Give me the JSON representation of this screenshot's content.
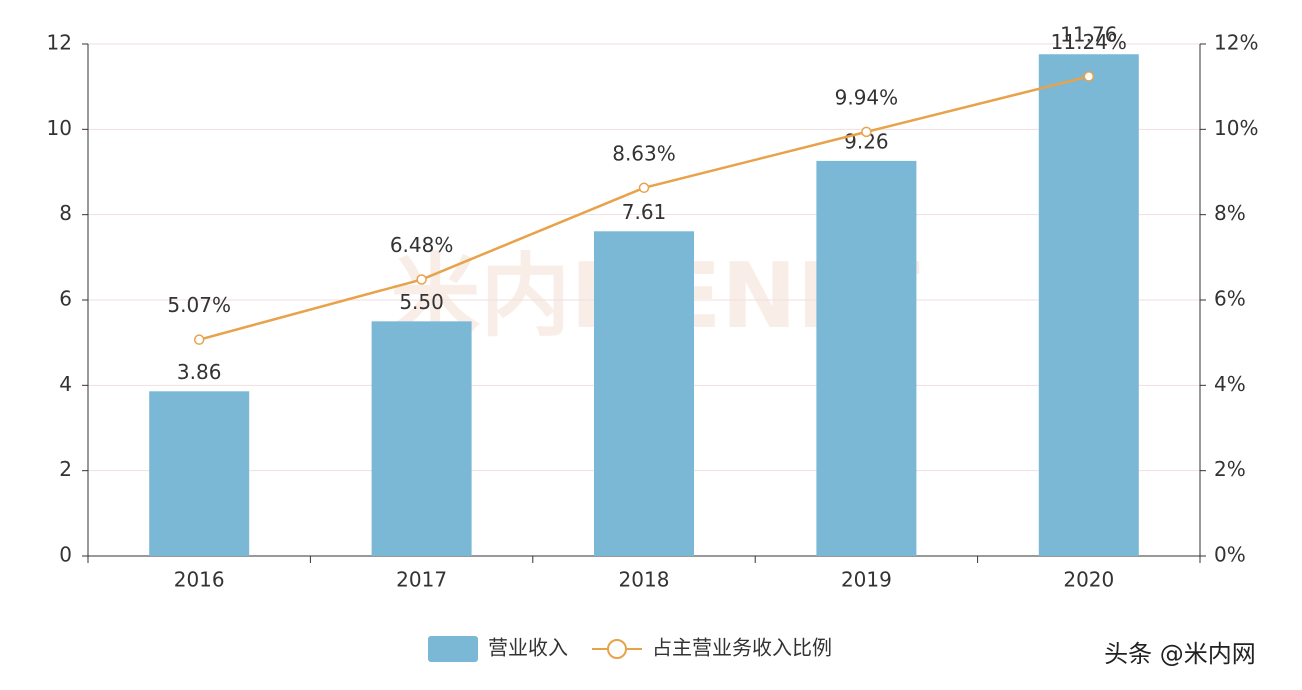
{
  "chart_data": {
    "type": "bar",
    "categories": [
      "2016",
      "2017",
      "2018",
      "2019",
      "2020"
    ],
    "series": [
      {
        "name": "营业收入",
        "type": "bar",
        "color": "#7ab8d6",
        "values": [
          3.86,
          5.5,
          7.61,
          9.26,
          11.76
        ],
        "value_labels": [
          "3.86",
          "5.50",
          "7.61",
          "9.26",
          "11.76"
        ]
      },
      {
        "name": "占主营业务收入比例",
        "type": "line",
        "axis": "y2",
        "color": "#e8a24a",
        "values": [
          5.07,
          6.48,
          8.63,
          9.94,
          11.24
        ],
        "value_labels": [
          "5.07%",
          "6.48%",
          "8.63%",
          "9.94%",
          "11.24%"
        ]
      }
    ],
    "ylim": [
      0,
      12
    ],
    "yticks": [
      0,
      2,
      4,
      6,
      8,
      10,
      12
    ],
    "y2lim": [
      0,
      12
    ],
    "y2ticks": [
      {
        "value": 0,
        "label": "0%"
      },
      {
        "value": 2,
        "label": "2%"
      },
      {
        "value": 4,
        "label": "4%"
      },
      {
        "value": 6,
        "label": "6%"
      },
      {
        "value": 8,
        "label": "8%"
      },
      {
        "value": 10,
        "label": "10%"
      },
      {
        "value": 12,
        "label": "12%"
      }
    ],
    "grid": true,
    "legend": "bottom",
    "watermark": "米内MENET",
    "source": "头条 @米内网"
  }
}
